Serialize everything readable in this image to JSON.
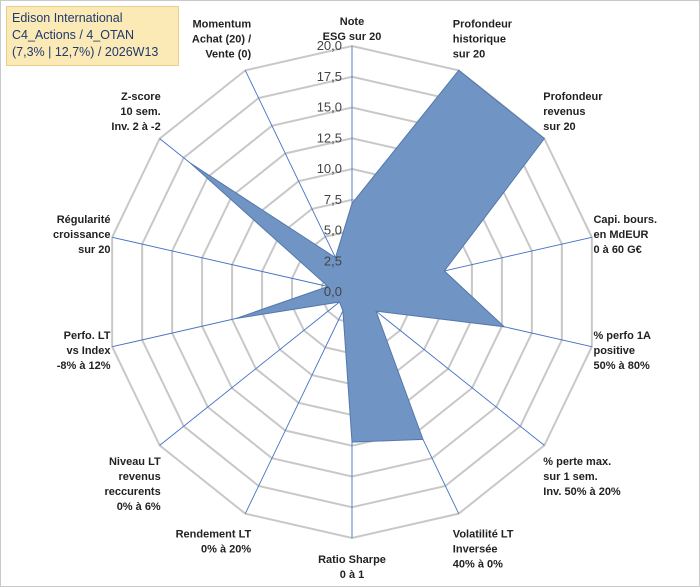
{
  "title_box": {
    "line1": "Edison International",
    "line2": "C4_Actions / 4_OTAN",
    "line3": "(7,3% | 12,7%) / 2026W13"
  },
  "chart_data": {
    "type": "radar",
    "title": "Edison International",
    "subtitle": "C4_Actions / 4_OTAN (7,3% | 12,7%) / 2026W13",
    "r_range": [
      0,
      20
    ],
    "ticks": [
      "0,0",
      "2,5",
      "5,0",
      "7,5",
      "10,0",
      "12,5",
      "15,0",
      "17,5",
      "20,0"
    ],
    "grid": true,
    "colors": {
      "fill": "#7094c4",
      "stroke": "#5478ab",
      "grid": "#c8c8c8",
      "spoke": "#4472c4"
    },
    "axes": [
      {
        "name": "note-esg",
        "lines": [
          "Note",
          "ESG sur 20"
        ],
        "value": 7.2
      },
      {
        "name": "profondeur-historique",
        "lines": [
          "Profondeur",
          "historique",
          "sur 20"
        ],
        "value": 20.0
      },
      {
        "name": "profondeur-revenus",
        "lines": [
          "Profondeur",
          "revenus",
          "sur 20"
        ],
        "value": 20.0
      },
      {
        "name": "capi-bours",
        "lines": [
          "Capi. bours.",
          "en MdEUR",
          "0 à 60 G€"
        ],
        "value": 7.7
      },
      {
        "name": "perfo-1a",
        "lines": [
          "% perfo 1A",
          "positive",
          "50% à 80%"
        ],
        "value": 12.7
      },
      {
        "name": "perte-max",
        "lines": [
          "% perte max.",
          "sur 1 sem.",
          "Inv. 50% à 20%"
        ],
        "value": 2.5
      },
      {
        "name": "volatilite-lt",
        "lines": [
          "Volatilité LT",
          "Inversée",
          "40% à 0%"
        ],
        "value": 13.3
      },
      {
        "name": "ratio-sharpe",
        "lines": [
          "Ratio Sharpe",
          "0 à 1"
        ],
        "value": 12.2
      },
      {
        "name": "rendement-lt",
        "lines": [
          "Rendement LT",
          "0% à 20%"
        ],
        "value": 1.7
      },
      {
        "name": "niveau-lt-revenus",
        "lines": [
          "Niveau LT",
          "revenus",
          "reccurents",
          "0% à 6%"
        ],
        "value": 1.3
      },
      {
        "name": "perfo-lt-index",
        "lines": [
          "Perfo. LT",
          "vs Index",
          "-8% à 12%"
        ],
        "value": 9.7
      },
      {
        "name": "regularite-croissance",
        "lines": [
          "Régularité",
          "croissance",
          "sur 20"
        ],
        "value": 2.0
      },
      {
        "name": "z-score",
        "lines": [
          "Z-score",
          "10 sem.",
          "Inv. 2 à -2"
        ],
        "value": 16.8
      },
      {
        "name": "momentum",
        "lines": [
          "Momentum",
          "Achat (20) /",
          "Vente (0)"
        ],
        "value": 3.1
      }
    ]
  }
}
